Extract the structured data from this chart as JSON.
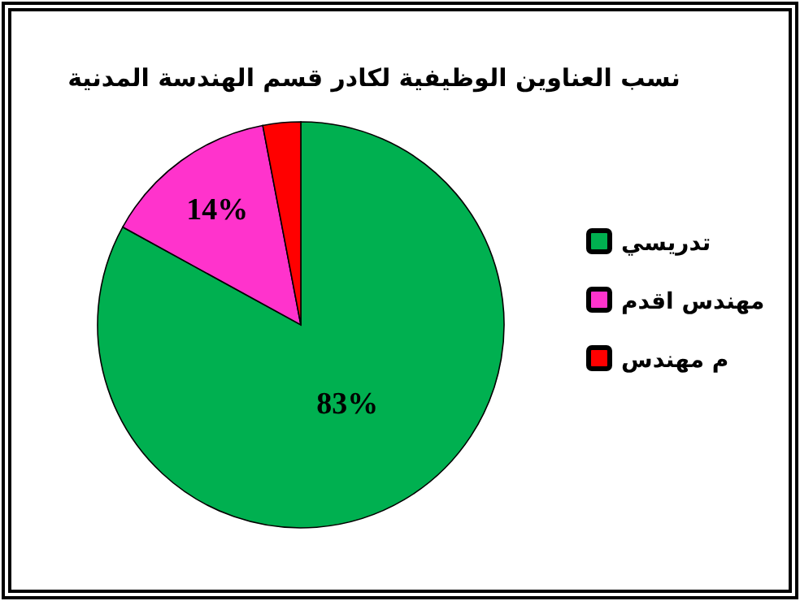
{
  "chart_data": {
    "type": "pie",
    "title": "نسب العناوين الوظيفية لكادر قسم الهندسة المدنية",
    "categories": [
      "تدريسي",
      "مهندس اقدم",
      "م مهندس"
    ],
    "values": [
      83,
      14,
      3
    ],
    "colors": [
      "#00b050",
      "#ff33cc",
      "#ff0000"
    ],
    "value_labels": [
      "83%",
      "14%",
      null
    ],
    "legend": "right"
  }
}
